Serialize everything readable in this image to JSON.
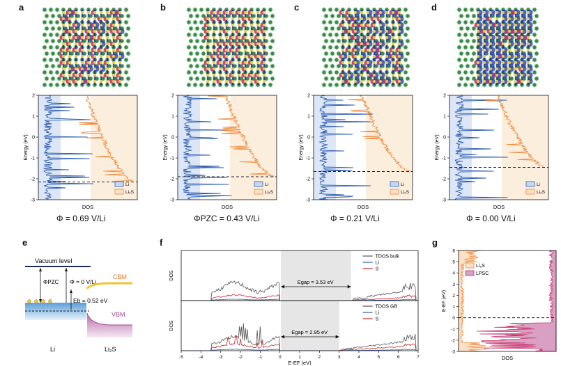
{
  "panel_labels": [
    "a",
    "b",
    "c",
    "d",
    "e",
    "f",
    "g"
  ],
  "panels_top": [
    {
      "id": "a",
      "phi_text": "Φ = 0.69 V/Li",
      "ylabel": "Energy (eV)",
      "xlabel": "DOS",
      "yticks": [
        "2",
        "1",
        "0",
        "-1",
        "-2",
        "-3"
      ],
      "legend": [
        "Li",
        "Li₂S"
      ],
      "fermi_dashed_energy": -2.15
    },
    {
      "id": "b",
      "phi_text": "ΦPZC = 0.43 V/Li",
      "ylabel": "Energy (eV)",
      "xlabel": "DOS",
      "yticks": [
        "2",
        "1",
        "0",
        "-1",
        "-2",
        "-3"
      ],
      "legend": [
        "Li",
        "Li₂S"
      ],
      "fermi_dashed_energy": -1.9
    },
    {
      "id": "c",
      "phi_text": "Φ = 0.21 V/Li",
      "ylabel": "Energy (eV)",
      "xlabel": "DOS",
      "yticks": [
        "2",
        "1",
        "0",
        "-1",
        "-2",
        "-3"
      ],
      "legend": [
        "Li",
        "Li₂S"
      ],
      "fermi_dashed_energy": -1.65
    },
    {
      "id": "d",
      "phi_text": "Φ = 0.00 V/Li",
      "ylabel": "Energy (eV)",
      "xlabel": "DOS",
      "yticks": [
        "2",
        "1",
        "0",
        "-1",
        "-2",
        "-3"
      ],
      "legend": [
        "Li",
        "Li₂S"
      ],
      "fermi_dashed_energy": -1.45
    }
  ],
  "panel_e": {
    "vacuum_level": "Vacuum level",
    "phi_pzc": "ΦPZC",
    "phi_zero": "Φ = 0 V/Li",
    "cbm": "CBM",
    "vbm": "VBM",
    "eb": "Eb = 0.52 eV",
    "li": "Li",
    "li2s": "Li₂S"
  },
  "panel_f": {
    "ylabel_top": "DOS",
    "ylabel_bottom": "DOS",
    "xlabel": "E-EF (eV)",
    "xticks": [
      "-5",
      "-4",
      "-3",
      "-2",
      "-1",
      "0",
      "1",
      "2",
      "3",
      "4",
      "5",
      "6",
      "7"
    ],
    "legend_top": [
      "TDOS bulk",
      "Li",
      "S"
    ],
    "legend_bottom": [
      "TDOS GB",
      "Li",
      "S"
    ],
    "egap_top": "Egap = 3.53 eV",
    "egap_bottom": "Egap = 2.95 eV"
  },
  "panel_g": {
    "ylabel": "E-EF (eV)",
    "xlabel": "DOS",
    "yticks": [
      "6",
      "5",
      "4",
      "3",
      "2",
      "1",
      "0",
      "-1",
      "-2",
      "-3"
    ],
    "legend": [
      "Li₂S",
      "LPSC"
    ]
  },
  "colors": {
    "li": "#2f5fb0",
    "li2s": "#f08a3c",
    "lpsc": "#c8326a",
    "tdos": "#555555",
    "s": "#c0272d"
  }
}
